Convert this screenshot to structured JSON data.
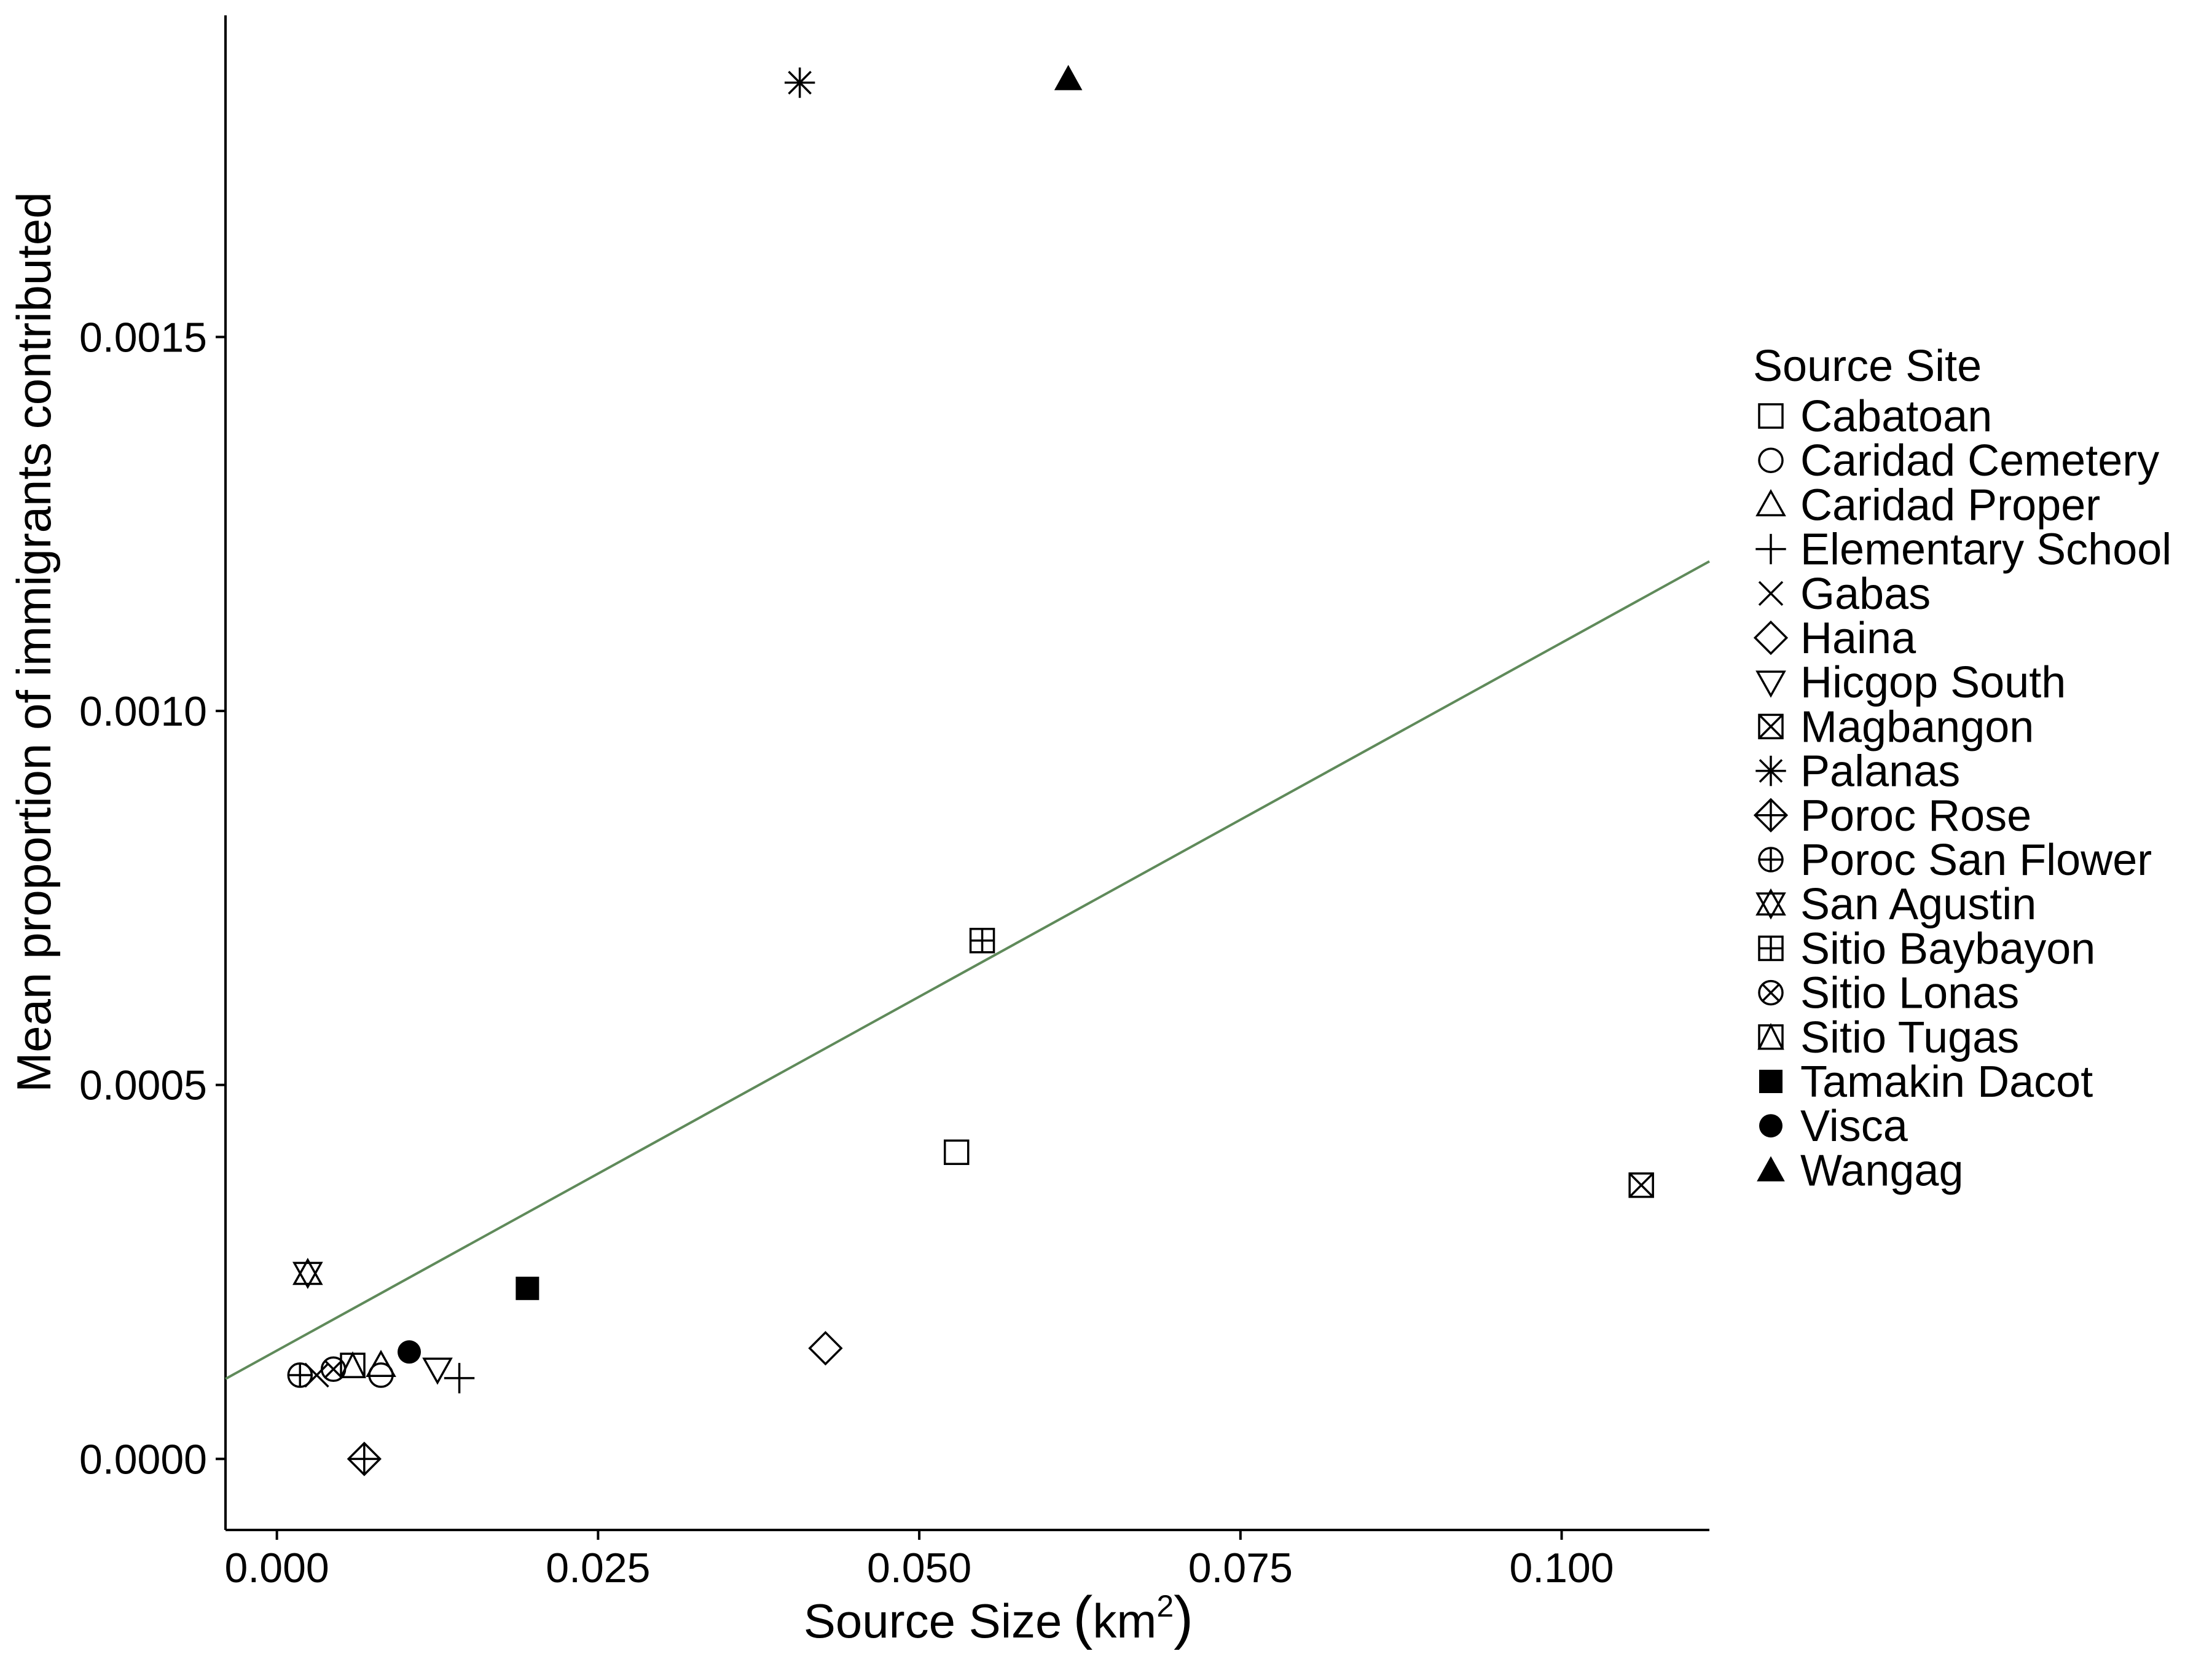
{
  "chart_data": {
    "type": "scatter",
    "xlabel": "Source Size",
    "xlabel_unit_base": "km",
    "xlabel_unit_exp": "2",
    "ylabel": "Mean proportion of immigrants contributed",
    "xlim": [
      -0.004,
      0.1115
    ],
    "ylim": [
      -9.5e-05,
      0.00193
    ],
    "x_ticks": [
      0.0,
      0.025,
      0.05,
      0.075,
      0.1
    ],
    "x_tick_labels": [
      "0.000",
      "0.025",
      "0.050",
      "0.075",
      "0.100"
    ],
    "y_ticks": [
      0.0,
      0.0005,
      0.001,
      0.0015
    ],
    "y_tick_labels": [
      "0.0000",
      "0.0005",
      "0.0010",
      "0.0015"
    ],
    "grid": false,
    "legend_position": "right",
    "legend_title": "Source Site",
    "trend_line": {
      "x": [
        -0.004,
        0.1115
      ],
      "y": [
        0.000107,
        0.0012
      ],
      "color": "#5f8a5a"
    },
    "series": [
      {
        "name": "Cabatoan",
        "shape": "square-open",
        "x": [
          0.0529
        ],
        "y": [
          0.00041
        ]
      },
      {
        "name": "Caridad Cemetery",
        "shape": "circle-open",
        "x": [
          0.0081
        ],
        "y": [
          0.000112
        ]
      },
      {
        "name": "Caridad Proper",
        "shape": "triangle-open",
        "x": [
          0.0081
        ],
        "y": [
          0.000125
        ]
      },
      {
        "name": "Elementary School",
        "shape": "plus",
        "x": [
          0.0142
        ],
        "y": [
          0.000108
        ]
      },
      {
        "name": "Gabas",
        "shape": "cross",
        "x": [
          0.0031
        ],
        "y": [
          0.000112
        ]
      },
      {
        "name": "Haina",
        "shape": "diamond-open",
        "x": [
          0.0427
        ],
        "y": [
          0.000148
        ]
      },
      {
        "name": "Hicgop South",
        "shape": "triangle-down-open",
        "x": [
          0.0125
        ],
        "y": [
          0.00012
        ]
      },
      {
        "name": "Magbangon",
        "shape": "square-cross",
        "x": [
          0.1062
        ],
        "y": [
          0.000366
        ]
      },
      {
        "name": "Palanas",
        "shape": "asterisk",
        "x": [
          0.0407
        ],
        "y": [
          0.00184
        ]
      },
      {
        "name": "Poroc Rose",
        "shape": "diamond-plus",
        "x": [
          0.0068
        ],
        "y": [
          0.0
        ]
      },
      {
        "name": "Poroc San Flower",
        "shape": "circle-plus",
        "x": [
          0.0018
        ],
        "y": [
          0.000112
        ]
      },
      {
        "name": "San Agustin",
        "shape": "hexagram",
        "x": [
          0.0024
        ],
        "y": [
          0.000248
        ]
      },
      {
        "name": "Sitio Baybayon",
        "shape": "square-plus",
        "x": [
          0.0549
        ],
        "y": [
          0.000693
        ]
      },
      {
        "name": "Sitio Lonas",
        "shape": "circle-cross",
        "x": [
          0.0044
        ],
        "y": [
          0.00012
        ]
      },
      {
        "name": "Sitio Tugas",
        "shape": "square-triangle",
        "x": [
          0.0059
        ],
        "y": [
          0.000125
        ]
      },
      {
        "name": "Tamakin Dacot",
        "shape": "square-filled",
        "x": [
          0.0195
        ],
        "y": [
          0.000228
        ]
      },
      {
        "name": "Visca",
        "shape": "circle-filled",
        "x": [
          0.0103
        ],
        "y": [
          0.000143
        ]
      },
      {
        "name": "Wangag",
        "shape": "triangle-filled",
        "x": [
          0.0616
        ],
        "y": [
          0.001845
        ]
      }
    ]
  }
}
